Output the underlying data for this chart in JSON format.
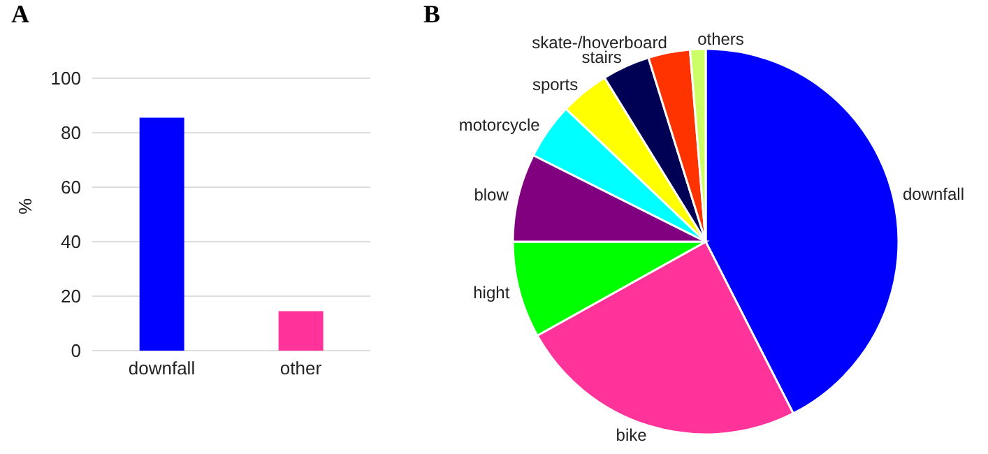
{
  "chart_data": [
    {
      "type": "bar",
      "title": "A",
      "ylabel": "%",
      "categories": [
        "downfall",
        "other"
      ],
      "values": [
        85.5,
        14.5
      ],
      "colors": [
        "#0000ff",
        "#ff3399"
      ],
      "ylim": [
        0,
        100
      ],
      "yticks": [
        0,
        20,
        40,
        60,
        80,
        100
      ],
      "grid": "y"
    },
    {
      "type": "pie",
      "title": "B",
      "categories": [
        "downfall",
        "bike",
        "hight",
        "blow",
        "motorcycle",
        "sports",
        "stairs",
        "skate-/hoverboard",
        "others"
      ],
      "values": [
        42.5,
        24.4,
        8.1,
        7.4,
        4.7,
        4.1,
        4.0,
        3.5,
        1.3
      ],
      "colors": [
        "#0000ff",
        "#ff3399",
        "#00ff00",
        "#800080",
        "#00ffff",
        "#ffff00",
        "#000055",
        "#ff3300",
        "#ccff66"
      ]
    }
  ]
}
